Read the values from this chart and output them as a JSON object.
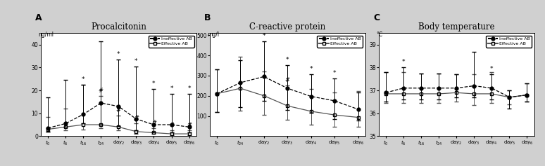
{
  "panel_A": {
    "title": "Procalcitonin",
    "label": "A",
    "ylabel": "ng/ml",
    "xlabels": [
      "$t_0$",
      "$t_6$",
      "$t_{16}$",
      "$t_{24}$",
      "day$_2$",
      "day$_3$",
      "day$_4$",
      "day$_5$",
      "day$_6$"
    ],
    "ylim": [
      0,
      45
    ],
    "yticks": [
      0,
      10,
      20,
      30,
      40
    ],
    "ineffective": {
      "mean": [
        3.5,
        5.5,
        9.5,
        14.5,
        13.0,
        7.5,
        5.0,
        5.0,
        4.0
      ],
      "err_lo": [
        1.5,
        1.5,
        4.0,
        9.5,
        8.5,
        5.0,
        3.5,
        3.5,
        2.5
      ],
      "err_hi": [
        13.5,
        19.0,
        13.0,
        27.0,
        20.5,
        23.0,
        15.5,
        13.5,
        14.5
      ],
      "asterisk": [
        false,
        false,
        true,
        false,
        true,
        true,
        true,
        true,
        true
      ],
      "hash": [
        false,
        false,
        false,
        false,
        false,
        false,
        false,
        false,
        false
      ]
    },
    "effective": {
      "mean": [
        3.0,
        4.0,
        5.0,
        5.0,
        4.0,
        2.0,
        1.5,
        1.0,
        1.0
      ],
      "err_lo": [
        1.0,
        1.5,
        2.0,
        1.5,
        1.5,
        1.0,
        0.5,
        0.5,
        0.5
      ],
      "err_hi": [
        5.5,
        8.0,
        17.5,
        12.5,
        5.0,
        3.5,
        2.0,
        1.5,
        1.5
      ],
      "hash": [
        false,
        false,
        false,
        true,
        true,
        true,
        true,
        true,
        true
      ]
    }
  },
  "panel_B": {
    "title": "C-reactive protein",
    "label": "B",
    "ylabel": "mg/l",
    "xlabels": [
      "$t_0$",
      "$t_{24}$",
      "day$_2$",
      "day$_3$",
      "day$_4$",
      "day$_5$",
      "day$_6$"
    ],
    "ylim": [
      0,
      510
    ],
    "yticks": [
      100,
      200,
      300,
      400,
      500
    ],
    "ineffective": {
      "mean": [
        210,
        265,
        295,
        237,
        197,
        175,
        133
      ],
      "err_lo": [
        90,
        120,
        120,
        107,
        80,
        90,
        55
      ],
      "err_hi": [
        120,
        110,
        175,
        115,
        110,
        110,
        85
      ],
      "asterisk": [
        false,
        false,
        true,
        true,
        true,
        true,
        false
      ],
      "hash": [
        false,
        false,
        false,
        false,
        false,
        false,
        false
      ]
    },
    "effective": {
      "mean": [
        210,
        237,
        200,
        150,
        123,
        105,
        93
      ],
      "err_lo": [
        90,
        110,
        95,
        70,
        65,
        60,
        45
      ],
      "err_hi": [
        120,
        155,
        120,
        100,
        110,
        110,
        130
      ],
      "hash": [
        false,
        false,
        false,
        true,
        false,
        false,
        false
      ]
    }
  },
  "panel_C": {
    "title": "Body temperature",
    "label": "C",
    "ylabel": "°C",
    "xlabels": [
      "$t_0$",
      "$t_6$",
      "$t_{16}$",
      "$t_{24}$",
      "day$_2$",
      "day$_3$",
      "day$_4$",
      "day$_5$",
      "day$_6$"
    ],
    "ylim": [
      35,
      39.5
    ],
    "yticks": [
      35,
      36,
      37,
      38,
      39
    ],
    "ineffective": {
      "mean": [
        36.9,
        37.1,
        37.1,
        37.1,
        37.1,
        37.2,
        37.1,
        36.7,
        36.8
      ],
      "err_lo": [
        0.4,
        0.5,
        0.5,
        0.5,
        0.4,
        0.5,
        0.5,
        0.5,
        0.3
      ],
      "err_hi": [
        0.9,
        0.9,
        0.65,
        0.65,
        0.6,
        1.5,
        0.6,
        0.3,
        0.5
      ],
      "asterisk": [
        false,
        true,
        false,
        false,
        false,
        false,
        true,
        false,
        false
      ],
      "hash": [
        false,
        false,
        false,
        false,
        false,
        false,
        false,
        false,
        false
      ]
    },
    "effective": {
      "mean": [
        36.85,
        36.85,
        36.85,
        36.85,
        36.9,
        36.85,
        36.85,
        36.7,
        36.8
      ],
      "err_lo": [
        0.4,
        0.4,
        0.4,
        0.4,
        0.4,
        0.5,
        0.4,
        0.3,
        0.3
      ],
      "err_hi": [
        0.95,
        0.95,
        0.9,
        0.9,
        0.8,
        0.85,
        0.95,
        0.3,
        0.5
      ],
      "hash": [
        false,
        false,
        false,
        false,
        false,
        false,
        false,
        false,
        false
      ]
    }
  },
  "legend": {
    "ineffective_label": "Ineffective AB",
    "effective_label": "Effective AB"
  },
  "figure_bg": "#d0d0d0",
  "axes_bg": "#ffffff"
}
